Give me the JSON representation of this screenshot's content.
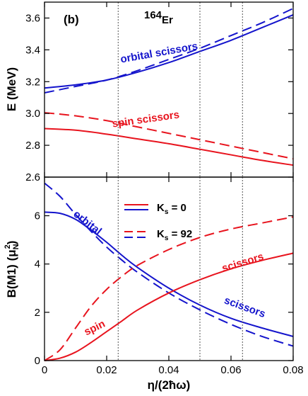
{
  "colors": {
    "red": "#e8141e",
    "blue": "#1414cc",
    "axis": "#000000",
    "guide": "#555555"
  },
  "chart_data": [
    {
      "type": "line",
      "panel": "top",
      "panel_label": "(b)",
      "nucleus_label_mass": "164",
      "nucleus_label_symbol": "Er",
      "ylabel": "E (MeV)",
      "xlim": [
        0,
        0.08
      ],
      "ylim": [
        2.6,
        3.7
      ],
      "yticks": [
        "2.6",
        "2.8",
        "3.0",
        "3.2",
        "3.4",
        "3.6"
      ],
      "vertical_lines_x": [
        0.0237,
        0.05,
        0.0637
      ],
      "annotations": [
        "orbital scissors",
        "spin scissors"
      ],
      "series": [
        {
          "color": "blue",
          "dash": "solid",
          "x": [
            0,
            0.01,
            0.02,
            0.03,
            0.04,
            0.05,
            0.06,
            0.07,
            0.08
          ],
          "y": [
            3.16,
            3.18,
            3.21,
            3.26,
            3.32,
            3.39,
            3.46,
            3.54,
            3.62
          ]
        },
        {
          "color": "blue",
          "dash": "dashed",
          "x": [
            0,
            0.01,
            0.02,
            0.03,
            0.04,
            0.05,
            0.06,
            0.07,
            0.08
          ],
          "y": [
            3.13,
            3.17,
            3.21,
            3.27,
            3.34,
            3.41,
            3.49,
            3.57,
            3.66
          ]
        },
        {
          "color": "red",
          "dash": "solid",
          "x": [
            0,
            0.01,
            0.02,
            0.03,
            0.04,
            0.05,
            0.06,
            0.07,
            0.08
          ],
          "y": [
            2.905,
            2.895,
            2.87,
            2.84,
            2.81,
            2.775,
            2.74,
            2.705,
            2.675
          ]
        },
        {
          "color": "red",
          "dash": "dashed",
          "x": [
            0,
            0.01,
            0.02,
            0.03,
            0.04,
            0.05,
            0.06,
            0.07,
            0.08
          ],
          "y": [
            3.005,
            2.985,
            2.955,
            2.915,
            2.875,
            2.835,
            2.795,
            2.755,
            2.715
          ]
        }
      ]
    },
    {
      "type": "line",
      "panel": "bottom",
      "ylabel_main": "B(M1) (",
      "ylabel_mu": "μ",
      "ylabel_sub": "N",
      "ylabel_sup": "2",
      "ylabel_close": ")",
      "xlabel": "η/(2ħω)",
      "xlim": [
        0,
        0.08
      ],
      "ylim": [
        0,
        7.6
      ],
      "xticks": [
        "0",
        "0.02",
        "0.04",
        "0.06",
        "0.08"
      ],
      "yticks": [
        "0",
        "2",
        "4",
        "6"
      ],
      "vertical_lines_x": [
        0.0237,
        0.05,
        0.0637
      ],
      "legend": [
        {
          "label_main": "K",
          "label_sub": "s",
          "label_rest": " = 0",
          "dash": "solid"
        },
        {
          "label_main": "K",
          "label_sub": "s",
          "label_rest": " = 92",
          "dash": "dashed"
        }
      ],
      "annotations": [
        "orbital",
        "scissors",
        "spin",
        "scissors"
      ],
      "series": [
        {
          "color": "blue",
          "dash": "solid",
          "x": [
            0,
            0.005,
            0.01,
            0.015,
            0.02,
            0.025,
            0.03,
            0.04,
            0.05,
            0.06,
            0.07,
            0.08
          ],
          "y": [
            6.15,
            6.1,
            5.85,
            5.4,
            4.9,
            4.35,
            3.85,
            3.0,
            2.3,
            1.75,
            1.35,
            1.0
          ]
        },
        {
          "color": "blue",
          "dash": "dashed",
          "x": [
            0,
            0.005,
            0.01,
            0.015,
            0.02,
            0.025,
            0.03,
            0.04,
            0.05,
            0.06,
            0.07,
            0.08
          ],
          "y": [
            7.35,
            6.8,
            6.05,
            5.35,
            4.7,
            4.15,
            3.65,
            2.8,
            2.1,
            1.5,
            1.0,
            0.6
          ]
        },
        {
          "color": "red",
          "dash": "solid",
          "x": [
            0,
            0.005,
            0.01,
            0.015,
            0.02,
            0.025,
            0.03,
            0.04,
            0.05,
            0.06,
            0.07,
            0.08
          ],
          "y": [
            0,
            0.1,
            0.35,
            0.75,
            1.2,
            1.65,
            2.1,
            2.8,
            3.35,
            3.8,
            4.15,
            4.45
          ]
        },
        {
          "color": "red",
          "dash": "dashed",
          "x": [
            0,
            0.005,
            0.01,
            0.015,
            0.02,
            0.025,
            0.03,
            0.04,
            0.05,
            0.06,
            0.07,
            0.08
          ],
          "y": [
            0,
            0.45,
            1.35,
            2.25,
            2.95,
            3.5,
            3.95,
            4.6,
            5.1,
            5.45,
            5.7,
            5.95
          ]
        }
      ]
    }
  ]
}
